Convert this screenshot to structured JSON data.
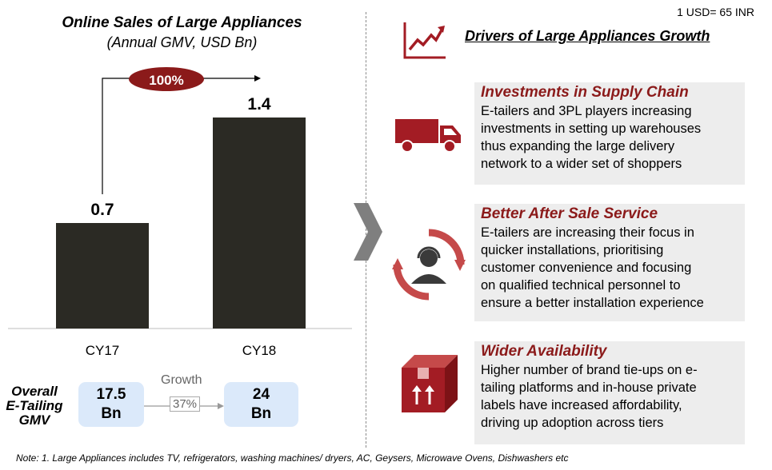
{
  "fx_note": "1 USD= 65 INR",
  "chart_data": {
    "type": "bar",
    "title": "Online  Sales of Large Appliances",
    "subtitle": "(Annual GMV, USD Bn)",
    "categories": [
      "CY17",
      "CY18"
    ],
    "values": [
      0.7,
      1.4
    ],
    "value_labels": [
      "0.7",
      "1.4"
    ],
    "growth_callout": "100%",
    "bar_color": "#2b2a24",
    "callout_color": "#8b1a1a",
    "ylim": [
      0,
      1.4
    ]
  },
  "overall": {
    "label": "Overall\nE-Tailing\nGMV",
    "from_value": "17.5\nBn",
    "to_value": "24\nBn",
    "growth_label": "Growth",
    "growth_value": "37%"
  },
  "drivers": {
    "title": "Drivers of Large Appliances Growth",
    "items": [
      {
        "title": "Investments in Supply Chain",
        "body": " E-tailers and 3PL players increasing\ninvestments in setting up warehouses\nthus expanding the large delivery\nnetwork to a wider set of shoppers",
        "icon": "truck-icon"
      },
      {
        "title": "Better After Sale Service",
        "body": "E-tailers are increasing their focus in\nquicker installations, prioritising\ncustomer convenience and focusing\non qualified technical personnel to\nensure a better installation experience",
        "icon": "support-agent-icon"
      },
      {
        "title": "Wider Availability",
        "body": "Higher number of brand tie-ups on e-\ntailing platforms and in-house private\nlabels have increased affordability,\ndriving up adoption across tiers",
        "icon": "package-icon"
      }
    ]
  },
  "accent_color": "#a31c24",
  "footnote": "Note: 1. Large Appliances includes TV, refrigerators, washing machines/ dryers, AC, Geysers, Microwave  Ovens, Dishwashers  etc"
}
